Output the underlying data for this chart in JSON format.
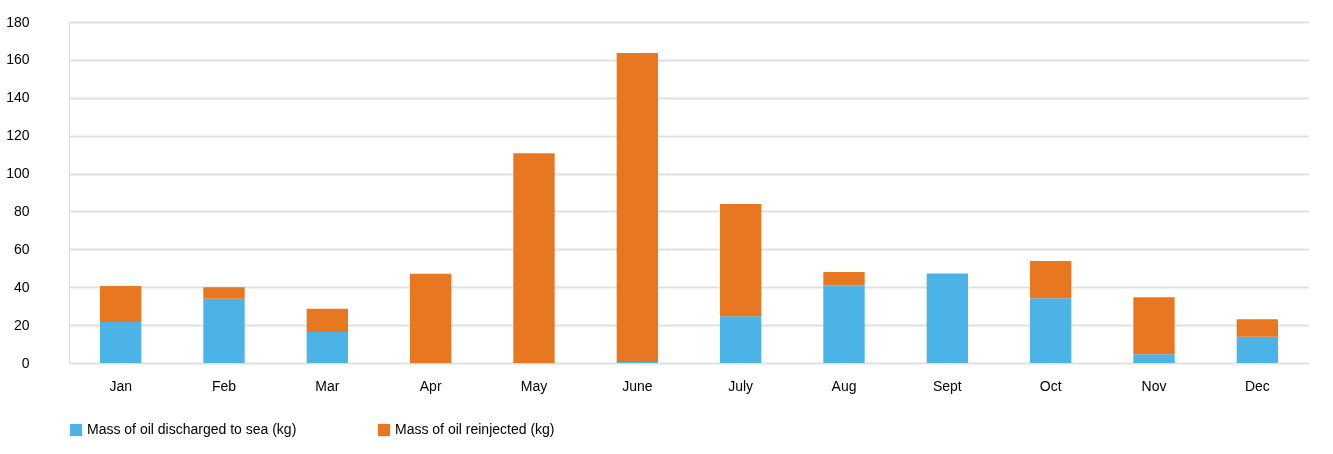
{
  "chart_data": {
    "type": "bar",
    "stacked": true,
    "categories": [
      "Jan",
      "Feb",
      "Mar",
      "Apr",
      "May",
      "June",
      "July",
      "Aug",
      "Sept",
      "Oct",
      "Nov",
      "Dec"
    ],
    "series": [
      {
        "name": "Mass of oil discharged to sea (kg)",
        "color": "#4bb3e6",
        "values": [
          21.7,
          33.9,
          16.4,
          0,
          0,
          0.5,
          24.7,
          41.1,
          47.2,
          34.2,
          4.6,
          13.8
        ]
      },
      {
        "name": "Mass of oil reinjected (kg)",
        "color": "#e87722",
        "values": [
          18.9,
          6.1,
          12.3,
          47.1,
          110.7,
          163.1,
          59.2,
          7.0,
          0,
          19.6,
          30.1,
          9.3
        ]
      }
    ],
    "ylim": [
      0,
      180
    ],
    "yticks": [
      0,
      20,
      40,
      60,
      80,
      100,
      120,
      140,
      160,
      180
    ],
    "grid": "y",
    "legend": "bottom"
  }
}
